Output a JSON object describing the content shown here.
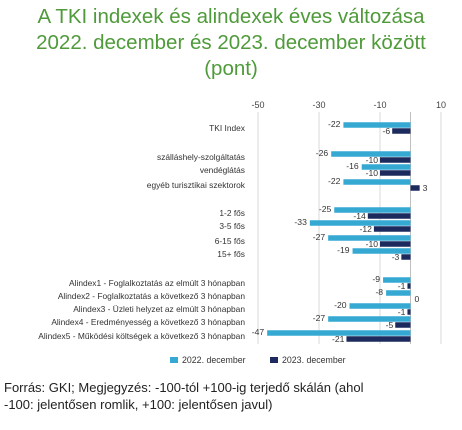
{
  "title_lines": [
    "A TKI indexek és alindexek éves változása",
    "2022. december és 2023. december között",
    "(pont)"
  ],
  "footer_lines": [
    "Forrás: GKI; Megjegyzés: -100-tól +100-ig terjedő skálán (ahol",
    "-100: jelentősen romlik, +100: jelentősen javul)"
  ],
  "colors": {
    "series_2022": "#36a9d3",
    "series_2023": "#1c2a5e",
    "title": "#4f9a3a"
  },
  "chart_data": {
    "type": "bar",
    "orientation": "horizontal",
    "xlim": [
      -50,
      10
    ],
    "xticks": [
      "-50",
      "-30",
      "-10",
      "10"
    ],
    "xtick_values": [
      -50,
      -30,
      -10,
      10
    ],
    "grid": true,
    "legend_position": "bottom",
    "categories": [
      "TKI Index",
      "szálláshely-szolgáltatás",
      "vendéglátás",
      "egyéb turisztikai szektorok",
      "1-2 fős",
      "3-5 fős",
      "6-15 fős",
      "15+ fős",
      "Alindex1 - Foglalkoztatás az elmúlt 3 hónapban",
      "Alindex2 -  Foglalkoztatás a következő 3 hónapban",
      "Alindex3 -  Üzleti helyzet  az elmúlt 3 hónapban",
      "Alindex4 - Eredményesség a következő 3 hónapban",
      "Alindex5 - Működési költségek a következő 3 hónapban"
    ],
    "series": [
      {
        "name": "2022. december",
        "values": [
          -22,
          -26,
          -16,
          -22,
          -25,
          -33,
          -27,
          -19,
          -9,
          -8,
          -20,
          -27,
          -47
        ]
      },
      {
        "name": "2023. december",
        "values": [
          -6,
          -10,
          -10,
          3,
          -14,
          -12,
          -10,
          -3,
          -1,
          0,
          -1,
          -5,
          -21
        ]
      }
    ]
  }
}
